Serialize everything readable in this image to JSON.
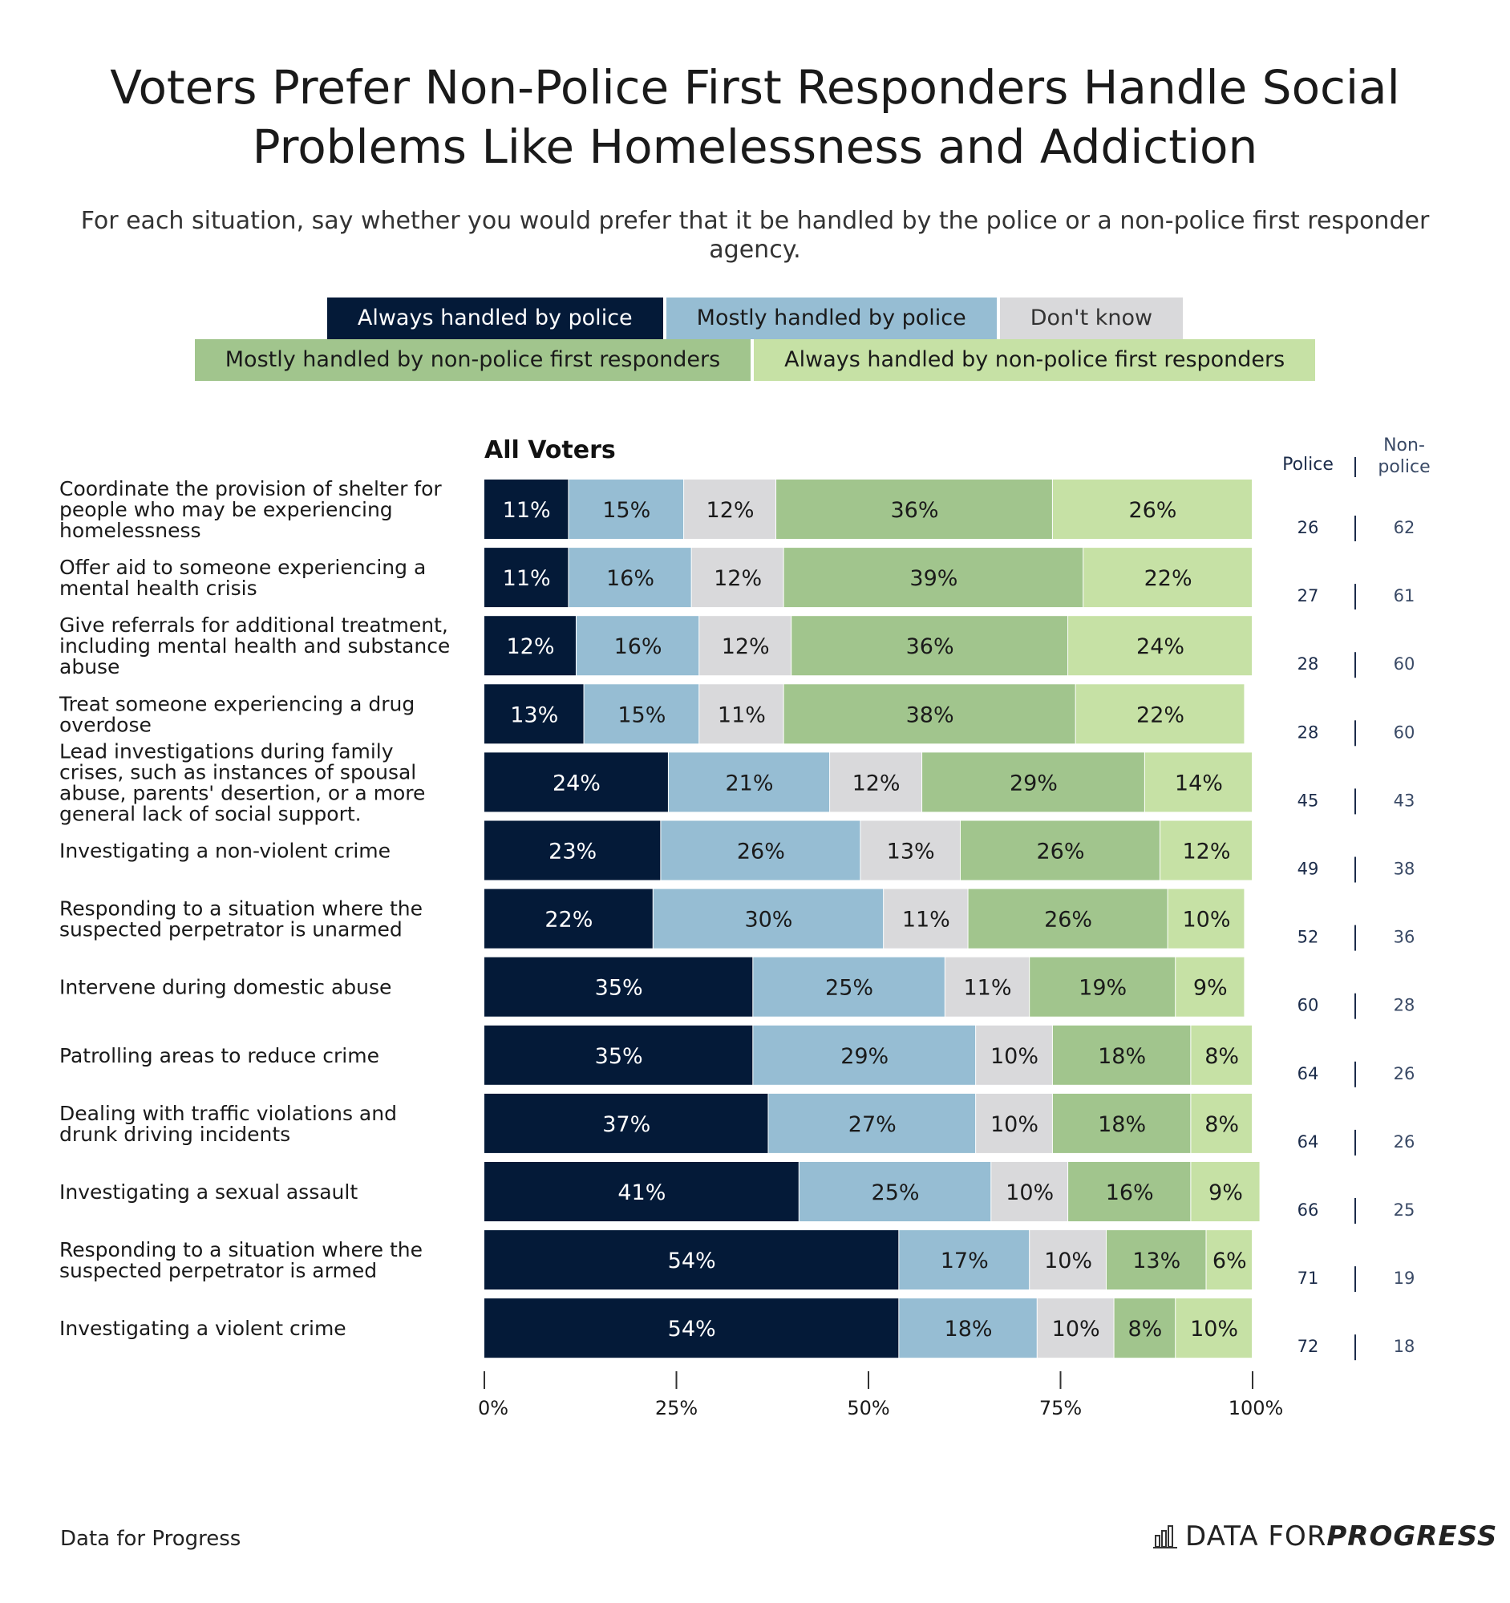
{
  "title_lines": [
    "Voters Prefer Non-Police First Responders Handle Social",
    "Problems Like Homelessness and Addiction"
  ],
  "subtitle": "For each situation, say whether you would prefer that it be handled by the police or a non-police first responder agency.",
  "legend": {
    "row1": [
      {
        "label": "Always handled by police",
        "color": "#041a38",
        "text_color": "#ffffff"
      },
      {
        "label": "Mostly handled by police",
        "color": "#96bdd3",
        "text_color": "#1a1a1a"
      },
      {
        "label": "Don't know",
        "color": "#d9d9db",
        "text_color": "#333333"
      }
    ],
    "row2": [
      {
        "label": "Mostly handled by non-police first responders",
        "color": "#a1c58d",
        "text_color": "#1a1a1a"
      },
      {
        "label": "Always handled by non-police first responders",
        "color": "#c6e1a5",
        "text_color": "#1a1a1a"
      }
    ]
  },
  "panel_title": "All Voters",
  "net_headers": {
    "police": "Police",
    "nonpolice_line1": "Non-",
    "nonpolice_line2": "police"
  },
  "footer": {
    "source": "Data for Progress",
    "brand_regular": "DATA FOR ",
    "brand_bold": "PROGRESS",
    "logo_icon": "bar-chart-logo-icon"
  },
  "chart_data": {
    "type": "bar",
    "orientation": "horizontal",
    "stacked": true,
    "title": "All Voters",
    "xlim": [
      0,
      100
    ],
    "x_ticks": [
      "0%",
      "25%",
      "50%",
      "75%",
      "100%"
    ],
    "x_tick_values": [
      0,
      25,
      50,
      75,
      100
    ],
    "categories": [
      [
        "Coordinate the provision of shelter for",
        "people who may be experiencing",
        "homelessness"
      ],
      [
        "Offer aid to someone experiencing a",
        "mental health crisis"
      ],
      [
        "Give referrals for additional treatment,",
        "including mental health and substance",
        "abuse"
      ],
      [
        "Treat someone experiencing a drug",
        "overdose"
      ],
      [
        "Lead investigations during family",
        "crises, such as instances of spousal",
        "abuse, parents' desertion, or a more",
        "general lack of social support."
      ],
      [
        "Investigating a non-violent crime"
      ],
      [
        "Responding to a situation where the",
        "suspected perpetrator is unarmed"
      ],
      [
        "Intervene during domestic abuse"
      ],
      [
        "Patrolling areas to reduce crime"
      ],
      [
        "Dealing with traffic violations and",
        "drunk driving incidents"
      ],
      [
        "Investigating a sexual assault"
      ],
      [
        "Responding to a situation where the",
        "suspected perpetrator is armed"
      ],
      [
        "Investigating a violent crime"
      ]
    ],
    "series": [
      {
        "name": "Always handled by police",
        "color": "#041a38",
        "text_color": "#ffffff",
        "values": [
          11,
          11,
          12,
          13,
          24,
          23,
          22,
          35,
          35,
          37,
          41,
          54,
          54
        ]
      },
      {
        "name": "Mostly handled by police",
        "color": "#96bdd3",
        "text_color": "#1a1a1a",
        "values": [
          15,
          16,
          16,
          15,
          21,
          26,
          30,
          25,
          29,
          27,
          25,
          17,
          18
        ]
      },
      {
        "name": "Don't know",
        "color": "#d9d9db",
        "text_color": "#1a1a1a",
        "values": [
          12,
          12,
          12,
          11,
          12,
          13,
          11,
          11,
          10,
          10,
          10,
          10,
          10
        ]
      },
      {
        "name": "Mostly handled by non-police first responders",
        "color": "#a1c58d",
        "text_color": "#1a1a1a",
        "values": [
          36,
          39,
          36,
          38,
          29,
          26,
          26,
          19,
          18,
          18,
          16,
          13,
          8
        ]
      },
      {
        "name": "Always handled by non-police first responders",
        "color": "#c6e1a5",
        "text_color": "#1a1a1a",
        "values": [
          26,
          22,
          24,
          22,
          14,
          12,
          10,
          9,
          8,
          8,
          9,
          6,
          10
        ]
      }
    ],
    "net_police": [
      26,
      27,
      28,
      28,
      45,
      49,
      52,
      60,
      64,
      64,
      66,
      71,
      72
    ],
    "net_nonpolice": [
      62,
      61,
      60,
      60,
      43,
      38,
      36,
      28,
      26,
      26,
      25,
      19,
      18
    ]
  }
}
